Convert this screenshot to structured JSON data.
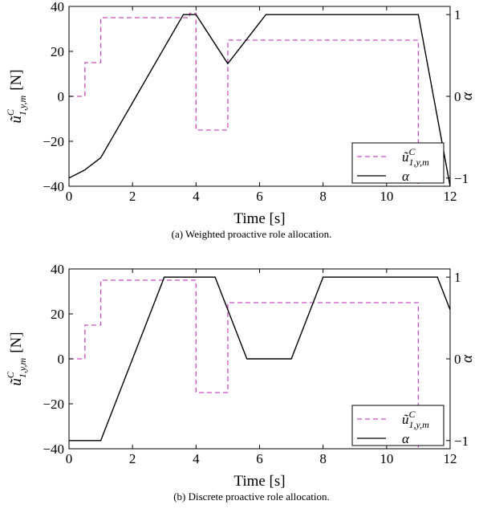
{
  "chart_data": [
    {
      "type": "line",
      "panel": "a",
      "caption": "(a) Weighted proactive role allocation.",
      "xlabel": "Time [s]",
      "ylabel_left": {
        "main": "ũ",
        "sup": "C",
        "sub": "1,y,m",
        "unit": "[N]"
      },
      "ylabel_right": "α",
      "xlim": [
        0,
        12
      ],
      "ylim_left": [
        -40,
        40
      ],
      "ylim_right": [
        -1.1,
        1.1
      ],
      "xticks": [
        "0",
        "2",
        "4",
        "6",
        "8",
        "10",
        "12"
      ],
      "yticks_left": [
        "-40",
        "-20",
        "0",
        "20",
        "40"
      ],
      "yticks_right": [
        "-1",
        "0",
        "1"
      ],
      "legend": {
        "position": "bottom-right",
        "entries": [
          {
            "main": "ũ",
            "sup": "C",
            "sub": "1,y,m"
          },
          {
            "main": "α"
          }
        ]
      },
      "series": [
        {
          "axis": "left",
          "color": "#c94ec4",
          "style": "dashed",
          "x": [
            0,
            0.5,
            0.5,
            1.0,
            1.0,
            3.8,
            3.8,
            4.0,
            4.0,
            5.0,
            5.0,
            11.0,
            11.0
          ],
          "y": [
            0,
            0,
            15,
            15,
            35,
            35,
            37,
            37,
            -15,
            -15,
            25,
            25,
            -40
          ]
        },
        {
          "axis": "right",
          "color": "#000000",
          "style": "solid",
          "x": [
            0,
            0.5,
            1.0,
            3.6,
            4.0,
            5.0,
            6.2,
            11.0,
            12.0
          ],
          "y": [
            -1.0,
            -0.9,
            -0.75,
            1.0,
            1.0,
            0.4,
            1.0,
            1.0,
            -1.1
          ]
        }
      ]
    },
    {
      "type": "line",
      "panel": "b",
      "caption": "(b) Discrete proactive role allocation.",
      "xlabel": "Time [s]",
      "ylabel_left": {
        "main": "ũ",
        "sup": "C",
        "sub": "1,y,m",
        "unit": "[N]"
      },
      "ylabel_right": "α",
      "xlim": [
        0,
        12
      ],
      "ylim_left": [
        -40,
        40
      ],
      "ylim_right": [
        -1.1,
        1.1
      ],
      "xticks": [
        "0",
        "2",
        "4",
        "6",
        "8",
        "10",
        "12"
      ],
      "yticks_left": [
        "-40",
        "-20",
        "0",
        "20",
        "40"
      ],
      "yticks_right": [
        "-1",
        "0",
        "1"
      ],
      "legend": {
        "position": "bottom-right",
        "entries": [
          {
            "main": "ũ",
            "sup": "C",
            "sub": "1,y,m"
          },
          {
            "main": "α"
          }
        ]
      },
      "series": [
        {
          "axis": "left",
          "color": "#c94ec4",
          "style": "dashed",
          "x": [
            0,
            0.5,
            0.5,
            1.0,
            1.0,
            4.0,
            4.0,
            5.0,
            5.0,
            11.0,
            11.0
          ],
          "y": [
            0,
            0,
            15,
            15,
            35,
            35,
            -15,
            -15,
            25,
            25,
            -40
          ]
        },
        {
          "axis": "right",
          "color": "#000000",
          "style": "solid",
          "x": [
            0,
            1.0,
            3.0,
            4.6,
            5.6,
            7.0,
            8.0,
            11.6,
            12.0
          ],
          "y": [
            -1.0,
            -1.0,
            1.0,
            1.0,
            0.0,
            0.0,
            1.0,
            1.0,
            0.6
          ]
        }
      ]
    }
  ]
}
